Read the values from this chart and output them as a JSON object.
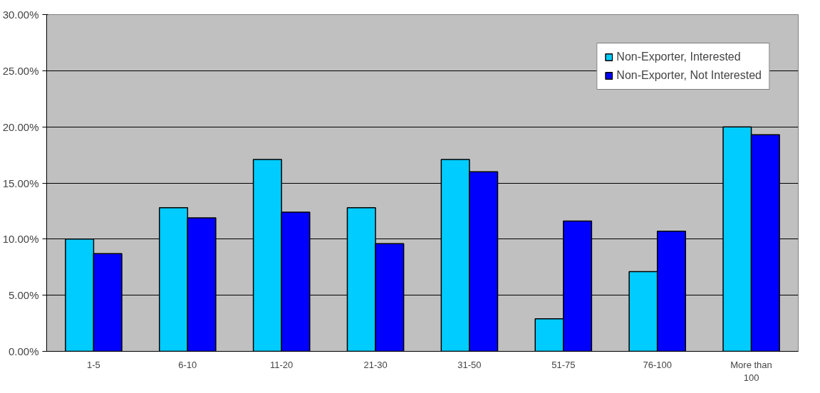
{
  "chart_data": {
    "type": "bar",
    "categories": [
      "1-5",
      "6-10",
      "11-20",
      "21-30",
      "31-50",
      "51-75",
      "76-100",
      "More than 100"
    ],
    "series": [
      {
        "name": "Non-Exporter, Interested",
        "color": "#00ccff",
        "values": [
          10.0,
          12.8,
          17.1,
          12.8,
          17.1,
          2.9,
          7.1,
          20.0
        ]
      },
      {
        "name": "Non-Exporter, Not Interested",
        "color": "#0000ff",
        "values": [
          8.7,
          11.9,
          12.4,
          9.6,
          16.0,
          11.6,
          10.7,
          19.3
        ]
      }
    ],
    "ylim": [
      0,
      30
    ],
    "yticks": [
      {
        "value": 0,
        "label": "0.00%"
      },
      {
        "value": 5,
        "label": "5.00%"
      },
      {
        "value": 10,
        "label": "10.00%"
      },
      {
        "value": 15,
        "label": "15.00%"
      },
      {
        "value": 20,
        "label": "20.00%"
      },
      {
        "value": 25,
        "label": "25.00%"
      },
      {
        "value": 30,
        "label": "30.00%"
      }
    ],
    "grid": "y",
    "legend": "top right"
  }
}
